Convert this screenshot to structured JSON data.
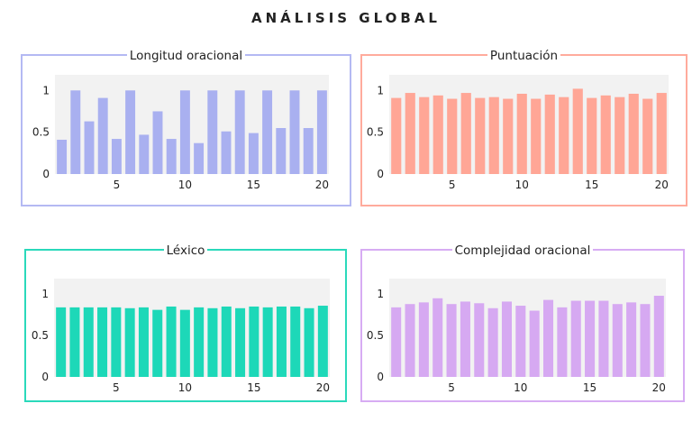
{
  "title": "ANÁLISIS GLOBAL",
  "chart_data": [
    {
      "type": "bar",
      "title": "Longitud oracional",
      "color": "#a9b0f0",
      "border": "#b4b9f3",
      "x": [
        1,
        2,
        3,
        4,
        5,
        6,
        7,
        8,
        9,
        10,
        11,
        12,
        13,
        14,
        15,
        16,
        17,
        18,
        19,
        20
      ],
      "values": [
        0.41,
        1.0,
        0.63,
        0.91,
        0.42,
        1.0,
        0.47,
        0.75,
        0.42,
        1.0,
        0.37,
        1.0,
        0.51,
        1.0,
        0.49,
        1.0,
        0.55,
        1.0,
        0.55,
        1.0
      ],
      "ylim": [
        0,
        1.1
      ],
      "yticks": [
        0,
        0.5,
        1
      ],
      "xticks": [
        5,
        10,
        15,
        20
      ],
      "xlabel": "",
      "ylabel": ""
    },
    {
      "type": "bar",
      "title": "Puntuación",
      "color": "#ffa696",
      "border": "#ffab9c",
      "x": [
        1,
        2,
        3,
        4,
        5,
        6,
        7,
        8,
        9,
        10,
        11,
        12,
        13,
        14,
        15,
        16,
        17,
        18,
        19,
        20
      ],
      "values": [
        0.91,
        0.97,
        0.92,
        0.94,
        0.9,
        0.97,
        0.91,
        0.92,
        0.9,
        0.96,
        0.9,
        0.95,
        0.92,
        1.02,
        0.91,
        0.94,
        0.92,
        0.96,
        0.9,
        0.97
      ],
      "ylim": [
        0,
        1.1
      ],
      "yticks": [
        0,
        0.5,
        1
      ],
      "xticks": [
        5,
        10,
        15,
        20
      ],
      "xlabel": "",
      "ylabel": ""
    },
    {
      "type": "bar",
      "title": "Léxico",
      "color": "#1dd8b8",
      "border": "#2ad9bb",
      "x": [
        1,
        2,
        3,
        4,
        5,
        6,
        7,
        8,
        9,
        10,
        11,
        12,
        13,
        14,
        15,
        16,
        17,
        18,
        19,
        20
      ],
      "values": [
        0.84,
        0.84,
        0.84,
        0.84,
        0.84,
        0.83,
        0.84,
        0.81,
        0.85,
        0.81,
        0.84,
        0.83,
        0.85,
        0.83,
        0.85,
        0.84,
        0.85,
        0.85,
        0.83,
        0.86
      ],
      "ylim": [
        0,
        1.1
      ],
      "yticks": [
        0,
        0.5,
        1
      ],
      "xticks": [
        5,
        10,
        15,
        20
      ],
      "xlabel": "",
      "ylabel": ""
    },
    {
      "type": "bar",
      "title": "Complejidad oracional",
      "color": "#d6a9f2",
      "border": "#d7acf3",
      "x": [
        1,
        2,
        3,
        4,
        5,
        6,
        7,
        8,
        9,
        10,
        11,
        12,
        13,
        14,
        15,
        16,
        17,
        18,
        19,
        20
      ],
      "values": [
        0.84,
        0.88,
        0.9,
        0.95,
        0.88,
        0.91,
        0.89,
        0.83,
        0.91,
        0.86,
        0.8,
        0.93,
        0.84,
        0.92,
        0.92,
        0.92,
        0.88,
        0.9,
        0.88,
        0.98
      ],
      "ylim": [
        0,
        1.1
      ],
      "yticks": [
        0,
        0.5,
        1
      ],
      "xticks": [
        5,
        10,
        15,
        20
      ],
      "xlabel": "",
      "ylabel": ""
    }
  ]
}
